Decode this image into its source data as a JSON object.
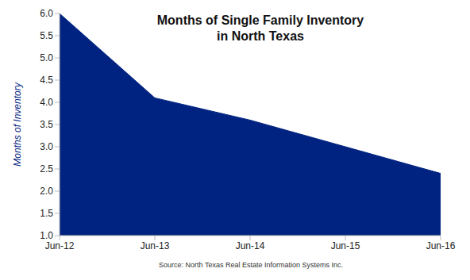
{
  "chart_data": {
    "type": "area",
    "title": "Months of Single Family Inventory\nin North Texas",
    "y_label": "Months of Inventory",
    "source": "Source: North Texas Real Estate Information Systems Inc.",
    "categories": [
      "Jun-12",
      "Jun-13",
      "Jun-14",
      "Jun-15",
      "Jun-16"
    ],
    "values": [
      6.0,
      4.1,
      3.6,
      3.0,
      2.4
    ],
    "color": "#002381",
    "ylim": [
      1,
      6
    ],
    "yticks": [
      {
        "value": 1,
        "label": "1.0"
      },
      1.5,
      {
        "value": 2,
        "label": "2.0"
      },
      2.5,
      {
        "value": 3,
        "label": "3.0"
      },
      3.5,
      {
        "value": 4,
        "label": "4.0"
      },
      4.5,
      {
        "value": 5,
        "label": "5.0"
      },
      5.5,
      {
        "value": 6,
        "label": "6.0"
      }
    ],
    "grid": false
  }
}
